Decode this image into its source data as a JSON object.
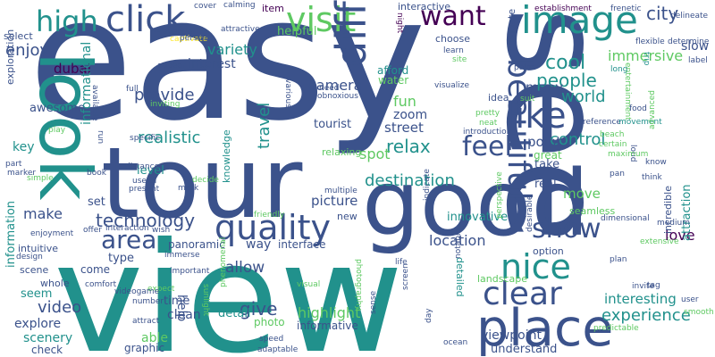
{
  "colors": {
    "background": "#ffffff",
    "palette": [
      "#440154",
      "#3b528b",
      "#21918c",
      "#5ec962",
      "#fde725"
    ]
  },
  "words": [
    {
      "text": "easy",
      "color": "#3b528b"
    },
    {
      "text": "view",
      "color": "#21918c"
    },
    {
      "text": "see",
      "color": "#3b528b"
    },
    {
      "text": "tour",
      "color": "#3b528b"
    },
    {
      "text": "good",
      "color": "#3b528b"
    },
    {
      "text": "look",
      "color": "#21918c"
    },
    {
      "text": "place",
      "color": "#3b528b"
    },
    {
      "text": "image",
      "color": "#21918c"
    },
    {
      "text": "click",
      "color": "#3b528b"
    },
    {
      "text": "high",
      "color": "#21918c"
    },
    {
      "text": "visit",
      "color": "#5ec962"
    },
    {
      "text": "want",
      "color": "#440154"
    },
    {
      "text": "quality",
      "color": "#3b528b"
    },
    {
      "text": "different",
      "color": "#3b528b"
    },
    {
      "text": "beautiful",
      "color": "#3b528b"
    },
    {
      "text": "like",
      "color": "#3b528b"
    },
    {
      "text": "nice",
      "color": "#21918c"
    },
    {
      "text": "clear",
      "color": "#3b528b"
    },
    {
      "text": "feel",
      "color": "#3b528b"
    },
    {
      "text": "show",
      "color": "#3b528b"
    },
    {
      "text": "area",
      "color": "#3b528b"
    },
    {
      "text": "city",
      "color": "#3b528b"
    },
    {
      "text": "cool",
      "color": "#21918c"
    },
    {
      "text": "people",
      "color": "#21918c"
    },
    {
      "text": "world",
      "color": "#21918c"
    },
    {
      "text": "experience",
      "color": "#21918c"
    },
    {
      "text": "technology",
      "color": "#3b528b"
    },
    {
      "text": "realistic",
      "color": "#21918c"
    },
    {
      "text": "enjoy",
      "color": "#3b528b"
    },
    {
      "text": "variety",
      "color": "#21918c"
    },
    {
      "text": "interest",
      "color": "#3b528b"
    },
    {
      "text": "camera",
      "color": "#3b528b"
    },
    {
      "text": "dubai",
      "color": "#440154"
    },
    {
      "text": "provide",
      "color": "#3b528b"
    },
    {
      "text": "relax",
      "color": "#21918c"
    },
    {
      "text": "destination",
      "color": "#21918c"
    },
    {
      "text": "control",
      "color": "#21918c"
    },
    {
      "text": "immersive",
      "color": "#5ec962"
    },
    {
      "text": "many",
      "color": "#3b528b"
    },
    {
      "text": "location",
      "color": "#3b528b"
    },
    {
      "text": "love",
      "color": "#440154"
    },
    {
      "text": "allow",
      "color": "#3b528b"
    },
    {
      "text": "video",
      "color": "#3b528b"
    },
    {
      "text": "make",
      "color": "#3b528b"
    },
    {
      "text": "highlight",
      "color": "#5ec962"
    },
    {
      "text": "interesting",
      "color": "#21918c"
    },
    {
      "text": "give",
      "color": "#3b528b"
    },
    {
      "text": "travel",
      "color": "#21918c"
    },
    {
      "text": "spot",
      "color": "#5ec962"
    },
    {
      "text": "fun",
      "color": "#5ec962"
    },
    {
      "text": "tourist",
      "color": "#3b528b"
    },
    {
      "text": "zoom",
      "color": "#3b528b"
    },
    {
      "text": "street",
      "color": "#3b528b"
    },
    {
      "text": "picture",
      "color": "#3b528b"
    },
    {
      "text": "point",
      "color": "#3b528b"
    },
    {
      "text": "move",
      "color": "#5ec962"
    },
    {
      "text": "slow",
      "color": "#3b528b"
    },
    {
      "text": "explore",
      "color": "#3b528b"
    },
    {
      "text": "scenery",
      "color": "#21918c"
    },
    {
      "text": "clean",
      "color": "#3b528b"
    },
    {
      "text": "able",
      "color": "#5ec962"
    },
    {
      "text": "viewpoint",
      "color": "#3b528b"
    },
    {
      "text": "key",
      "color": "#21918c"
    },
    {
      "text": "awesome",
      "color": "#3b528b"
    },
    {
      "text": "informational",
      "color": "#21918c"
    },
    {
      "text": "help",
      "color": "#3b528b"
    },
    {
      "text": "detail",
      "color": "#21918c"
    },
    {
      "text": "innovative",
      "color": "#21918c"
    },
    {
      "text": "take",
      "color": "#3b528b"
    },
    {
      "text": "real",
      "color": "#3b528b"
    },
    {
      "text": "great",
      "color": "#5ec962"
    },
    {
      "text": "level",
      "color": "#21918c"
    },
    {
      "text": "way",
      "color": "#3b528b"
    },
    {
      "text": "interface",
      "color": "#3b528b"
    },
    {
      "text": "panoramic",
      "color": "#3b528b"
    },
    {
      "text": "seem",
      "color": "#21918c"
    },
    {
      "text": "information",
      "color": "#21918c"
    },
    {
      "text": "afford",
      "color": "#21918c"
    },
    {
      "text": "water",
      "color": "#5ec962"
    },
    {
      "text": "choose",
      "color": "#3b528b"
    },
    {
      "text": "navigate",
      "color": "#3b528b"
    },
    {
      "text": "interactive",
      "color": "#3b528b"
    },
    {
      "text": "item",
      "color": "#440154"
    },
    {
      "text": "helpful",
      "color": "#5ec962"
    },
    {
      "text": "relaxing",
      "color": "#5ec962"
    },
    {
      "text": "attraction",
      "color": "#21918c"
    },
    {
      "text": "incredible",
      "color": "#3b528b"
    },
    {
      "text": "set",
      "color": "#3b528b"
    },
    {
      "text": "time",
      "color": "#3b528b"
    },
    {
      "text": "type",
      "color": "#3b528b"
    },
    {
      "text": "photo",
      "color": "#5ec962"
    },
    {
      "text": "informative",
      "color": "#3b528b"
    },
    {
      "text": "understand",
      "color": "#3b528b"
    },
    {
      "text": "graphic",
      "color": "#3b528b"
    },
    {
      "text": "check",
      "color": "#3b528b"
    },
    {
      "text": "come",
      "color": "#3b528b"
    },
    {
      "text": "scene",
      "color": "#3b528b"
    },
    {
      "text": "whole",
      "color": "#3b528b"
    },
    {
      "text": "intuitive",
      "color": "#3b528b"
    },
    {
      "text": "new",
      "color": "#3b528b"
    },
    {
      "text": "option",
      "color": "#3b528b"
    },
    {
      "text": "landscape",
      "color": "#5ec962"
    },
    {
      "text": "detailed",
      "color": "#21918c"
    },
    {
      "text": "seamless",
      "color": "#5ec962"
    },
    {
      "text": "knowledge",
      "color": "#21918c"
    },
    {
      "text": "exploration",
      "color": "#3b528b"
    },
    {
      "text": "select",
      "color": "#3b528b"
    },
    {
      "text": "idea",
      "color": "#3b528b"
    },
    {
      "text": "suit",
      "color": "#5ec962"
    },
    {
      "text": "pretty",
      "color": "#5ec962"
    },
    {
      "text": "neat",
      "color": "#5ec962"
    },
    {
      "text": "palm",
      "color": "#3b528b"
    },
    {
      "text": "food",
      "color": "#3b528b"
    },
    {
      "text": "label",
      "color": "#3b528b"
    },
    {
      "text": "flexible",
      "color": "#3b528b"
    },
    {
      "text": "frenetic",
      "color": "#3b528b"
    },
    {
      "text": "long",
      "color": "#21918c"
    },
    {
      "text": "trip",
      "color": "#21918c"
    },
    {
      "text": "entertainment",
      "color": "#5ec962"
    },
    {
      "text": "establishment",
      "color": "#440154"
    },
    {
      "text": "calming",
      "color": "#3b528b"
    },
    {
      "text": "avenue",
      "color": "#3b528b"
    },
    {
      "text": "captivate",
      "color": "#fde725"
    },
    {
      "text": "attractive",
      "color": "#3b528b"
    },
    {
      "text": "person",
      "color": "#3b528b"
    },
    {
      "text": "appear",
      "color": "#3b528b"
    },
    {
      "text": "full",
      "color": "#3b528b"
    },
    {
      "text": "inviting",
      "color": "#5ec962"
    },
    {
      "text": "available",
      "color": "#3b528b"
    },
    {
      "text": "play",
      "color": "#5ec962"
    },
    {
      "text": "run",
      "color": "#3b528b"
    },
    {
      "text": "specific",
      "color": "#3b528b"
    },
    {
      "text": "distance",
      "color": "#3b528b"
    },
    {
      "text": "useful",
      "color": "#3b528b"
    },
    {
      "text": "present",
      "color": "#3b528b"
    },
    {
      "text": "book",
      "color": "#3b528b"
    },
    {
      "text": "simple",
      "color": "#5ec962"
    },
    {
      "text": "part",
      "color": "#3b528b"
    },
    {
      "text": "marker",
      "color": "#3b528b"
    },
    {
      "text": "mark",
      "color": "#3b528b"
    },
    {
      "text": "decide",
      "color": "#5ec962"
    },
    {
      "text": "friendly",
      "color": "#5ec962"
    },
    {
      "text": "multiple",
      "color": "#3b528b"
    },
    {
      "text": "various",
      "color": "#3b528b"
    },
    {
      "text": "need",
      "color": "#3b528b"
    },
    {
      "text": "obnoxious",
      "color": "#3b528b"
    },
    {
      "text": "night",
      "color": "#440154"
    },
    {
      "text": "learn",
      "color": "#3b528b"
    },
    {
      "text": "site",
      "color": "#5ec962"
    },
    {
      "text": "visualize",
      "color": "#3b528b"
    },
    {
      "text": "introduction",
      "color": "#3b528b"
    },
    {
      "text": "reference",
      "color": "#3b528b"
    },
    {
      "text": "movement",
      "color": "#21918c"
    },
    {
      "text": "certain",
      "color": "#5ec962"
    },
    {
      "text": "beach",
      "color": "#5ec962"
    },
    {
      "text": "determine",
      "color": "#3b528b"
    },
    {
      "text": "advanced",
      "color": "#5ec962"
    },
    {
      "text": "know",
      "color": "#3b528b"
    },
    {
      "text": "loud",
      "color": "#3b528b"
    },
    {
      "text": "think",
      "color": "#3b528b"
    },
    {
      "text": "maximum",
      "color": "#5ec962"
    },
    {
      "text": "pan",
      "color": "#3b528b"
    },
    {
      "text": "dimensional",
      "color": "#3b528b"
    },
    {
      "text": "medium",
      "color": "#3b528b"
    },
    {
      "text": "extensive",
      "color": "#5ec962"
    },
    {
      "text": "plan",
      "color": "#3b528b"
    },
    {
      "text": "tag",
      "color": "#3b528b"
    },
    {
      "text": "invite",
      "color": "#3b528b"
    },
    {
      "text": "user",
      "color": "#3b528b"
    },
    {
      "text": "smooth",
      "color": "#5ec962"
    },
    {
      "text": "delineate",
      "color": "#3b528b"
    },
    {
      "text": "desirable",
      "color": "#3b528b"
    },
    {
      "text": "perspective",
      "color": "#5ec962"
    },
    {
      "text": "indicate",
      "color": "#3b528b"
    },
    {
      "text": "screen",
      "color": "#3b528b"
    },
    {
      "text": "life",
      "color": "#3b528b"
    },
    {
      "text": "photography",
      "color": "#5ec962"
    },
    {
      "text": "notable",
      "color": "#3b528b"
    },
    {
      "text": "sense",
      "color": "#3b528b"
    },
    {
      "text": "day",
      "color": "#3b528b"
    },
    {
      "text": "ocean",
      "color": "#3b528b"
    },
    {
      "text": "predictable",
      "color": "#5ec962"
    },
    {
      "text": "visual",
      "color": "#5ec962"
    },
    {
      "text": "speed",
      "color": "#3b528b"
    },
    {
      "text": "adaptable",
      "color": "#3b528b"
    },
    {
      "text": "sunlight",
      "color": "#5ec962"
    },
    {
      "text": "phenomenal",
      "color": "#5ec962"
    },
    {
      "text": "important",
      "color": "#3b528b"
    },
    {
      "text": "immerse",
      "color": "#3b528b"
    },
    {
      "text": "interaction",
      "color": "#3b528b"
    },
    {
      "text": "offer",
      "color": "#3b528b"
    },
    {
      "text": "wish",
      "color": "#3b528b"
    },
    {
      "text": "expect",
      "color": "#5ec962"
    },
    {
      "text": "enjoyment",
      "color": "#3b528b"
    },
    {
      "text": "design",
      "color": "#3b528b"
    },
    {
      "text": "comfort",
      "color": "#3b528b"
    },
    {
      "text": "videogame",
      "color": "#3b528b"
    },
    {
      "text": "number",
      "color": "#3b528b"
    },
    {
      "text": "attract",
      "color": "#3b528b"
    },
    {
      "text": "cover",
      "color": "#3b528b"
    }
  ]
}
